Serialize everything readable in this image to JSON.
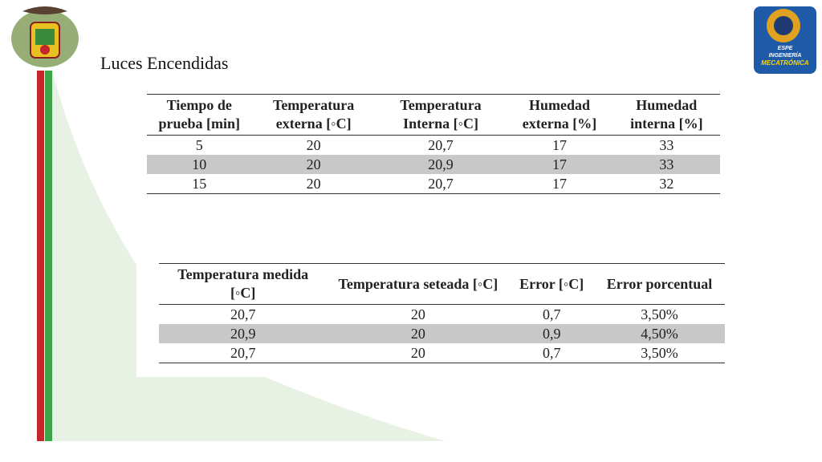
{
  "title": "Luces Encendidas",
  "logo_right": {
    "lines": [
      "ESPE",
      "INGENIERÍA",
      "MECATRÓNICA"
    ]
  },
  "table1": {
    "headers": [
      "Tiempo de prueba [min]",
      "Temperatura externa [◦C]",
      "Temperatura Interna [◦C]",
      "Humedad externa [%]",
      "Humedad interna [%]"
    ],
    "rows": [
      [
        "5",
        "20",
        "20,7",
        "17",
        "33"
      ],
      [
        "10",
        "20",
        "20,9",
        "17",
        "33"
      ],
      [
        "15",
        "20",
        "20,7",
        "17",
        "32"
      ]
    ]
  },
  "table2": {
    "headers": [
      "Temperatura medida [◦C]",
      "Temperatura seteada [◦C]",
      "Error [◦C]",
      "Error porcentual"
    ],
    "rows": [
      [
        "20,7",
        "20",
        "0,7",
        "3,50%"
      ],
      [
        "20,9",
        "20",
        "0,9",
        "4,50%"
      ],
      [
        "20,7",
        "20",
        "0,7",
        "3,50%"
      ]
    ]
  }
}
